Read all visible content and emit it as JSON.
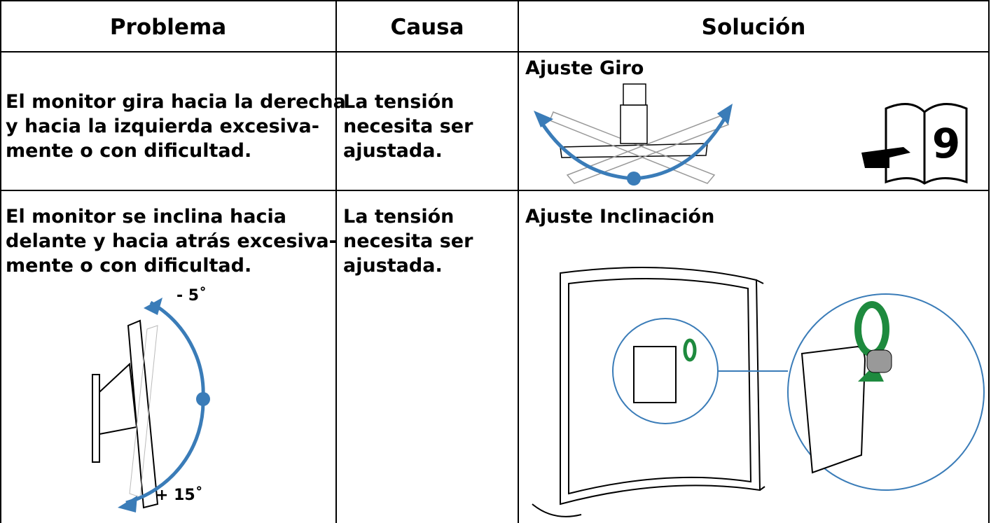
{
  "table": {
    "header": [
      "Problema",
      "Causa",
      "Solución"
    ],
    "rows": [
      {
        "problem": [
          "El monitor gira hacia la derecha",
          "y hacia la izquierda excesiva-",
          "mente o con dificultad."
        ],
        "cause": [
          "La tensión",
          "necesita ser",
          "ajustada."
        ],
        "solution": {
          "title": "Ajuste Giro",
          "page": "9"
        }
      },
      {
        "problem": [
          "El monitor se inclina hacia",
          "delante y hacia atrás excesiva-",
          "mente o con dificultad."
        ],
        "cause": [
          "La tensión",
          "necesita ser",
          "ajustada."
        ],
        "solution": {
          "title": "Ajuste Inclinación"
        },
        "angles": [
          "- 5˚",
          "+ 15˚"
        ]
      }
    ]
  }
}
